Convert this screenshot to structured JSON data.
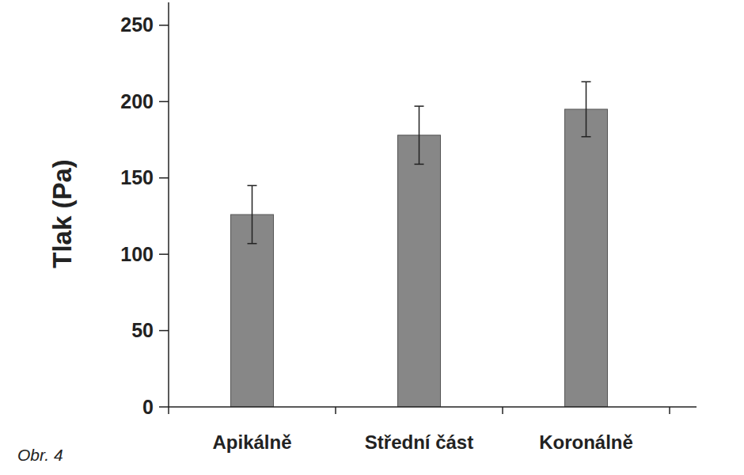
{
  "chart_data": {
    "type": "bar",
    "y_label": "Tlak (Pa)",
    "categories": [
      "Apikálně",
      "Střední část",
      "Koronálně"
    ],
    "values": [
      126,
      178,
      195
    ],
    "errors": [
      19,
      19,
      18
    ],
    "color": "#878787",
    "ylim": [
      0,
      265
    ],
    "yticks": [
      0,
      50,
      100,
      150,
      200,
      250
    ],
    "grid": false,
    "annotations": [
      "Obr. 4"
    ]
  }
}
